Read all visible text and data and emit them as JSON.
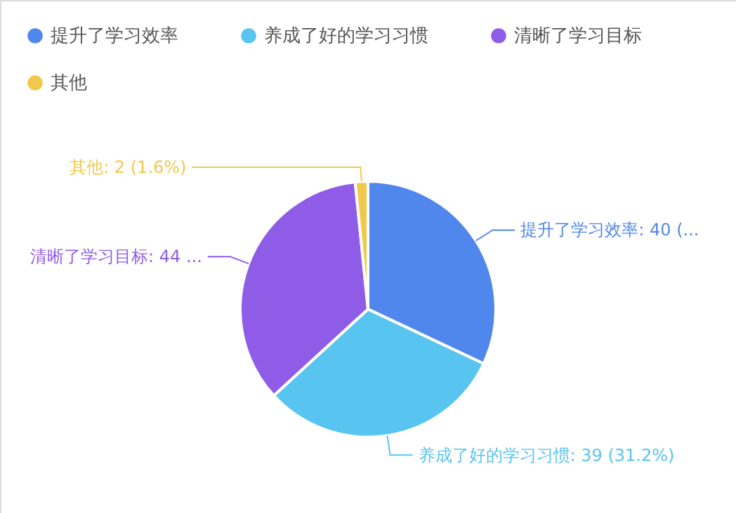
{
  "chart_data": {
    "type": "pie",
    "categories": [
      "提升了学习效率",
      "养成了好的学习习惯",
      "清晰了学习目标",
      "其他"
    ],
    "values": [
      40,
      39,
      44,
      2
    ],
    "colors": [
      "#5087ec",
      "#58c5f0",
      "#8f5ce8",
      "#f2c84c"
    ],
    "value_labels": [
      ": 40 (...",
      ": 39 (31.2%)",
      ": 44 ...",
      ": 2 (1.6%)"
    ],
    "legend": "top"
  }
}
